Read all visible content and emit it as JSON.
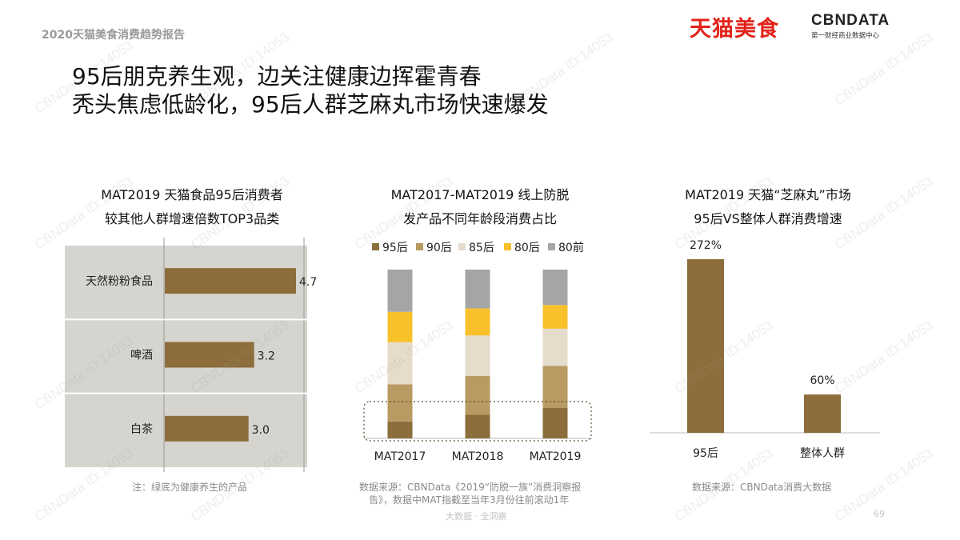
{
  "header": {
    "report_title": "2020天猫美食消费趋势报告",
    "tmall_logo_text": "天猫美食",
    "cbn_logo_text": "CBNDATA",
    "cbn_logo_sub": "第一财经商业数据中心"
  },
  "headline": {
    "line1": "95后朋克养生观，边关注健康边挥霍青春",
    "line2": "秃头焦虑低龄化，95后人群芝麻丸市场快速爆发"
  },
  "charts": {
    "left": {
      "title_line1": "MAT2019 天猫食品95后消费者",
      "title_line2": "较其他人群增速倍数TOP3品类",
      "note": "注：绿底为健康养生的产品"
    },
    "middle": {
      "title_line1": "MAT2017-MAT2019 线上防脱",
      "title_line2": "发产品不同年龄段消费占比",
      "source_line1": "数据来源：CBNData《2019“防脱一族”消费洞察报",
      "source_line2": "告》，数据中MAT指截至当年3月份往前滚动1年"
    },
    "right": {
      "title_line1": "MAT2019 天猫“芝麻丸”市场",
      "title_line2": "95后VS整体人群消费增速",
      "source": "数据来源：CBNData消费大数据"
    }
  },
  "footer": {
    "text": "大数据 · 全洞察",
    "page_number": "69"
  },
  "watermark_text": "CBNData ID:14053",
  "colors": {
    "bar_brown": "#8c6d3b",
    "panel_gray": "#d5d4ce",
    "series_95": "#8c6d3b",
    "series_90": "#b89a63",
    "series_85": "#e6dccb",
    "series_80": "#f8c12c",
    "series_80pre": "#a5a5a5",
    "tmall_red": "#e2231a"
  },
  "chart_data": [
    {
      "type": "bar",
      "orientation": "horizontal",
      "categories": [
        "天然粉粉食品",
        "啤酒",
        "白茶"
      ],
      "values": [
        4.7,
        3.2,
        3.0
      ],
      "value_labels": [
        "4.7",
        "3.2",
        "3.0"
      ],
      "xlim": [
        0,
        4.7
      ]
    },
    {
      "type": "bar",
      "stacked": true,
      "percent": true,
      "categories": [
        "MAT2017",
        "MAT2018",
        "MAT2019"
      ],
      "series": [
        {
          "name": "95后",
          "values": [
            10,
            14,
            18
          ]
        },
        {
          "name": "90后",
          "values": [
            22,
            23,
            25
          ]
        },
        {
          "name": "85后",
          "values": [
            25,
            24,
            22
          ]
        },
        {
          "name": "80后",
          "values": [
            18,
            16,
            14
          ]
        },
        {
          "name": "80前",
          "values": [
            25,
            23,
            21
          ]
        }
      ],
      "ylim": [
        0,
        100
      ]
    },
    {
      "type": "bar",
      "categories": [
        "95后",
        "整体人群"
      ],
      "values": [
        272,
        60
      ],
      "value_labels": [
        "272%",
        "60%"
      ],
      "ylim": [
        0,
        272
      ]
    }
  ]
}
